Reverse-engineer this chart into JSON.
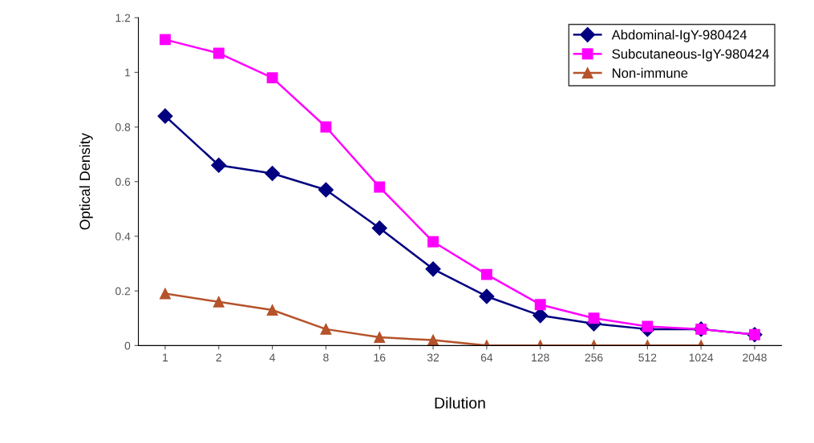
{
  "chart_data": {
    "type": "line",
    "xlabel": "Dilution",
    "ylabel": "Optical Density",
    "categories": [
      "1",
      "2",
      "4",
      "8",
      "16",
      "32",
      "64",
      "128",
      "256",
      "512",
      "1024",
      "2048"
    ],
    "series": [
      {
        "name": "Abdominal-IgY-980424",
        "color": "#000080",
        "marker": "diamond",
        "values": [
          0.84,
          0.66,
          0.63,
          0.57,
          0.43,
          0.28,
          0.18,
          0.11,
          0.08,
          0.06,
          0.06,
          0.04
        ]
      },
      {
        "name": "Subcutaneous-IgY-980424",
        "color": "#ff00ff",
        "marker": "square",
        "values": [
          1.12,
          1.07,
          0.98,
          0.8,
          0.58,
          0.38,
          0.26,
          0.15,
          0.1,
          0.07,
          0.06,
          0.04
        ]
      },
      {
        "name": "Non-immune",
        "color": "#b5532a",
        "marker": "triangle",
        "values": [
          0.19,
          0.16,
          0.13,
          0.06,
          0.03,
          0.02,
          0.0,
          0.0,
          0.0,
          0.0,
          0.0,
          null
        ]
      }
    ],
    "ylim": [
      0,
      1.2
    ],
    "yticks": [
      0,
      0.2,
      0.4,
      0.6,
      0.8,
      1,
      1.2
    ],
    "grid": false,
    "legend": "top right",
    "line_style": "solid"
  }
}
